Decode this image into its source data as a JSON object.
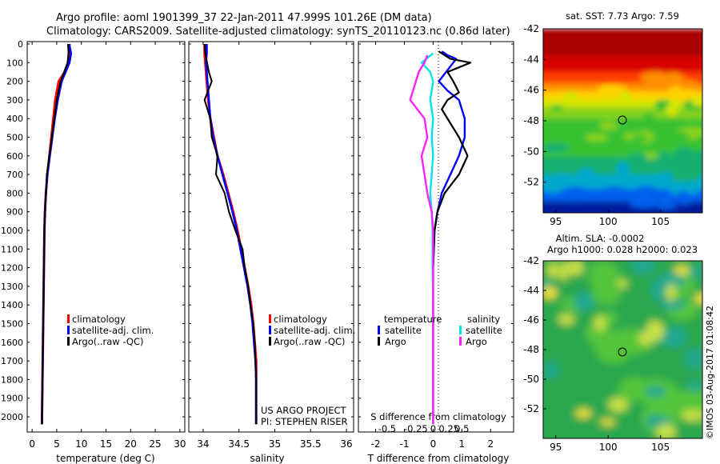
{
  "header": {
    "line1": "Argo profile: aoml 1901399_37 22-Jan-2011 47.999S 101.26E (DM data)",
    "line2": "Climatology: CARS2009. Satellite-adjusted climatology: synTS_20110123.nc (0.86d later)"
  },
  "colors": {
    "climatology": "#ff0000",
    "satellite": "#0000ff",
    "argo": "#000000",
    "sal_satellite": "#00e5e5",
    "sal_argo": "#ff22ff"
  },
  "credit": {
    "project": "US ARGO PROJECT",
    "pi": "PI: STEPHEN RISER"
  },
  "stamp": "©IMOS 03-Aug-2017 01:08:42",
  "chart_data": [
    {
      "id": "temperature",
      "type": "line",
      "xlabel": "temperature (deg C)",
      "xlim": [
        -1,
        31
      ],
      "xticks": [
        0,
        5,
        10,
        15,
        20,
        25,
        30
      ],
      "ylim": [
        2060,
        0
      ],
      "yticks": [
        0,
        100,
        200,
        300,
        400,
        500,
        600,
        700,
        800,
        900,
        1000,
        1100,
        1200,
        1300,
        1400,
        1500,
        1600,
        1700,
        1800,
        1900,
        2000
      ],
      "legend": [
        "climatology",
        "satellite-adj. clim.",
        "Argo(..raw -QC)"
      ],
      "series": [
        {
          "name": "climatology",
          "color": "#ff0000",
          "x": [
            7.6,
            7.6,
            7.4,
            6.6,
            5.4,
            4.7,
            4.3,
            3.9,
            3.5,
            3.1,
            2.8,
            2.6,
            2.5,
            2.4,
            2.3,
            2.25,
            2.2,
            2.15,
            2.1,
            2.05,
            2.0,
            2.0
          ],
          "y": [
            0,
            50,
            100,
            150,
            200,
            300,
            400,
            500,
            600,
            700,
            800,
            900,
            1000,
            1200,
            1400,
            1500,
            1600,
            1700,
            1800,
            1900,
            2000,
            2040
          ]
        },
        {
          "name": "satellite-adj. clim.",
          "color": "#0000ff",
          "x": [
            7.5,
            7.9,
            7.6,
            6.8,
            6.0,
            5.2,
            4.6,
            4.1,
            3.6,
            3.1,
            2.8,
            2.6,
            2.5,
            2.4,
            2.3,
            2.25,
            2.2,
            2.15,
            2.1,
            2.05,
            2.0,
            2.0
          ],
          "y": [
            0,
            50,
            100,
            150,
            200,
            300,
            400,
            500,
            600,
            700,
            800,
            900,
            1000,
            1200,
            1400,
            1500,
            1600,
            1700,
            1800,
            1900,
            2000,
            2040
          ]
        },
        {
          "name": "Argo(..raw -QC)",
          "color": "#000000",
          "x": [
            7.3,
            7.4,
            7.2,
            6.5,
            5.8,
            5.0,
            4.5,
            4.0,
            3.5,
            3.0,
            2.8,
            2.6,
            2.5,
            2.4,
            2.3,
            2.25,
            2.2,
            2.15,
            2.1,
            2.05,
            2.0,
            2.0
          ],
          "y": [
            0,
            50,
            100,
            150,
            200,
            300,
            400,
            500,
            600,
            700,
            800,
            900,
            1000,
            1200,
            1400,
            1500,
            1600,
            1700,
            1800,
            1900,
            2000,
            2040
          ]
        }
      ]
    },
    {
      "id": "salinity",
      "type": "line",
      "xlabel": "salinity",
      "xlim": [
        33.8,
        36.1
      ],
      "xticks": [
        34,
        34.5,
        35,
        35.5,
        36
      ],
      "ylim": [
        2060,
        0
      ],
      "legend": [
        "climatology",
        "satellite-adj. clim.",
        "Argo(..raw -QC)"
      ],
      "series": [
        {
          "name": "climatology",
          "color": "#ff0000",
          "x": [
            34.02,
            34.02,
            34.03,
            34.05,
            34.07,
            34.1,
            34.15,
            34.2,
            34.28,
            34.35,
            34.42,
            34.48,
            34.53,
            34.58,
            34.63,
            34.67,
            34.7,
            34.72,
            34.74,
            34.74,
            34.74,
            34.74
          ],
          "y": [
            0,
            50,
            100,
            200,
            300,
            400,
            500,
            600,
            700,
            800,
            900,
            1000,
            1100,
            1200,
            1300,
            1400,
            1500,
            1600,
            1700,
            1800,
            1900,
            2040
          ]
        },
        {
          "name": "satellite-adj. clim.",
          "color": "#0000ff",
          "x": [
            34.05,
            34.05,
            34.04,
            34.06,
            34.08,
            34.1,
            34.14,
            34.2,
            34.27,
            34.34,
            34.41,
            34.47,
            34.52,
            34.57,
            34.62,
            34.66,
            34.69,
            34.71,
            34.73,
            34.74,
            34.74,
            34.74
          ],
          "y": [
            0,
            50,
            100,
            200,
            300,
            400,
            500,
            600,
            700,
            800,
            900,
            1000,
            1100,
            1200,
            1300,
            1400,
            1500,
            1600,
            1700,
            1800,
            1900,
            2040
          ]
        },
        {
          "name": "Argo(..raw -QC)",
          "color": "#000000",
          "x": [
            34.02,
            34.03,
            34.08,
            34.12,
            34.02,
            34.1,
            34.12,
            34.2,
            34.18,
            34.3,
            34.36,
            34.45,
            34.55,
            34.58,
            34.63,
            34.66,
            34.7,
            34.72,
            34.73,
            34.74,
            34.74,
            34.74
          ],
          "y": [
            0,
            50,
            150,
            200,
            300,
            400,
            500,
            600,
            700,
            800,
            900,
            1000,
            1100,
            1200,
            1300,
            1400,
            1500,
            1600,
            1700,
            1800,
            1900,
            2040
          ]
        }
      ]
    },
    {
      "id": "differences",
      "type": "line",
      "xlabel": "T difference from climatology",
      "xlabel_top": "S difference from climatology",
      "xlim": [
        -2.6,
        2.8
      ],
      "xticks": [
        -2,
        -1,
        0,
        1,
        2
      ],
      "xticks_top": [
        "-0.5",
        "-0.25",
        "0",
        "0.25",
        "0.5"
      ],
      "xticks_top_pos": [
        -1.6,
        -0.6,
        0,
        0.55,
        1.0
      ],
      "ylim": [
        2060,
        0
      ],
      "legend_left_title": "temperature",
      "legend_right_title": "salinity",
      "legend": [
        "satellite",
        "Argo",
        "satellite",
        "Argo"
      ],
      "series": [
        {
          "name": "temperature satellite",
          "color": "#0000ff",
          "x": [
            0.3,
            0.5,
            0.8,
            0.7,
            0.5,
            0.2,
            0.5,
            0.9,
            1.1,
            1.1,
            0.9,
            0.6,
            0.3,
            0.15,
            0.05,
            0.0,
            0.0,
            0.0,
            0.0,
            0.0
          ],
          "y": [
            40,
            60,
            80,
            100,
            140,
            200,
            250,
            300,
            400,
            500,
            600,
            700,
            800,
            900,
            1000,
            1200,
            1400,
            1600,
            1800,
            2040
          ]
        },
        {
          "name": "temperature Argo",
          "color": "#000000",
          "x": [
            0.2,
            0.4,
            0.6,
            1.3,
            0.5,
            0.7,
            0.9,
            0.5,
            0.3,
            0.9,
            1.2,
            0.9,
            0.4,
            0.15,
            0.05,
            0.0,
            0.0,
            0.0,
            0.0,
            0.0
          ],
          "y": [
            40,
            60,
            80,
            100,
            150,
            200,
            260,
            300,
            350,
            500,
            600,
            700,
            800,
            900,
            1000,
            1200,
            1400,
            1600,
            1800,
            2040
          ]
        },
        {
          "name": "salinity satellite",
          "color": "#00e5e5",
          "x": [
            0.0,
            -0.4,
            -0.1,
            0.0,
            -0.1,
            0.0,
            -0.05,
            0.0,
            -0.05,
            -0.1,
            -0.05,
            -0.02,
            -0.02,
            0.0,
            0.0,
            0.0,
            0.0
          ],
          "y": [
            50,
            100,
            150,
            200,
            300,
            400,
            500,
            600,
            700,
            800,
            900,
            1000,
            1200,
            1400,
            1600,
            1800,
            2040
          ]
        },
        {
          "name": "salinity Argo",
          "color": "#ff22ff",
          "x": [
            -0.2,
            -0.3,
            -0.5,
            -0.6,
            -0.8,
            -0.3,
            -0.2,
            -0.4,
            -0.3,
            -0.2,
            -0.05,
            0.0,
            0.0,
            0.0,
            0.0,
            0.0,
            0.0
          ],
          "y": [
            60,
            100,
            150,
            200,
            300,
            400,
            500,
            600,
            700,
            800,
            900,
            1000,
            1200,
            1400,
            1600,
            1800,
            2040
          ]
        }
      ]
    },
    {
      "id": "sst-map",
      "type": "heatmap",
      "title": "sat. SST: 7.73 Argo: 7.59",
      "xlim": [
        93.8,
        109
      ],
      "ylim": [
        -54,
        -42
      ],
      "xticks": [
        95,
        100,
        105
      ],
      "yticks": [
        -42,
        -44,
        -46,
        -48,
        -50,
        -52
      ],
      "marker": [
        101.26,
        -48.0
      ]
    },
    {
      "id": "sla-map",
      "type": "heatmap",
      "title": "Altim. SLA: -0.0002",
      "subtitle": "Argo h1000: 0.028 h2000: 0.023",
      "xlim": [
        93.8,
        109
      ],
      "ylim": [
        -54,
        -42
      ],
      "xticks": [
        95,
        100,
        105
      ],
      "yticks": [
        -42,
        -44,
        -46,
        -48,
        -50,
        -52
      ],
      "marker": [
        101.26,
        -48.0
      ]
    }
  ]
}
